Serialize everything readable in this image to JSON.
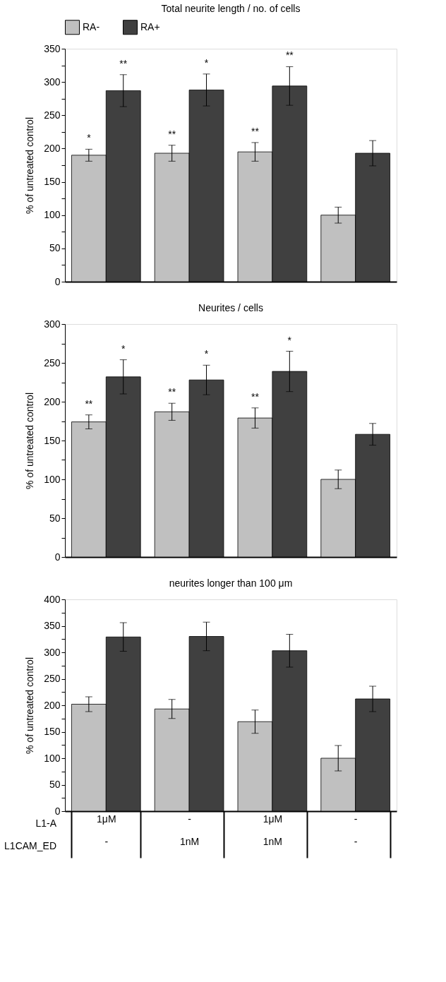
{
  "chart_data": [
    {
      "type": "bar",
      "title": "Total neurite length / no. of cells",
      "ylabel": "% of untreated control",
      "categories": [
        null,
        null,
        null,
        null
      ],
      "tick_labels": "y",
      "legend": "top",
      "ylim": [
        0,
        350
      ],
      "yticks": [
        0,
        {
          "value": 25,
          "label": null
        },
        50,
        {
          "value": 75,
          "label": null
        },
        100,
        {
          "value": 125,
          "label": null
        },
        150,
        {
          "value": 175,
          "label": null
        },
        200,
        {
          "value": 225,
          "label": null
        },
        250,
        {
          "value": 275,
          "label": null
        },
        300,
        {
          "value": 325,
          "label": null
        },
        350
      ],
      "series": [
        {
          "name": "RA-",
          "color": "#c0c0c0",
          "values": [
            190,
            193,
            195,
            100
          ],
          "errors": [
            9,
            12,
            14,
            12
          ],
          "value_labels": [
            "*",
            "**",
            "**",
            null
          ]
        },
        {
          "name": "RA+",
          "color": "#404040",
          "values": [
            287,
            288,
            294,
            193
          ],
          "errors": [
            24,
            24,
            29,
            19
          ],
          "value_labels": [
            "**",
            "*",
            "**",
            null
          ]
        }
      ]
    },
    {
      "type": "bar",
      "title": "Neurites / cells",
      "ylabel": "% of untreated control",
      "categories": [
        null,
        null,
        null,
        null
      ],
      "tick_labels": "y",
      "ylim": [
        0,
        300
      ],
      "yticks": [
        0,
        {
          "value": 25,
          "label": null
        },
        50,
        {
          "value": 75,
          "label": null
        },
        100,
        {
          "value": 125,
          "label": null
        },
        150,
        {
          "value": 175,
          "label": null
        },
        200,
        {
          "value": 225,
          "label": null
        },
        250,
        {
          "value": 275,
          "label": null
        },
        300
      ],
      "series": [
        {
          "name": "RA-",
          "color": "#c0c0c0",
          "values": [
            174,
            187,
            179,
            100
          ],
          "errors": [
            9,
            11,
            13,
            12
          ],
          "value_labels": [
            "**",
            "**",
            "**",
            null
          ]
        },
        {
          "name": "RA+",
          "color": "#404040",
          "values": [
            232,
            228,
            239,
            158
          ],
          "errors": [
            22,
            19,
            26,
            14
          ],
          "value_labels": [
            "*",
            "*",
            "*",
            null
          ]
        }
      ]
    },
    {
      "type": "bar",
      "title": "neurites longer than 100 μm",
      "ylabel": "% of untreated control",
      "categories": [
        "1μM\n-",
        "-\n1nM",
        "1μM\n1nM",
        "-\n-"
      ],
      "annotations": [
        "L1-A",
        "L1CAM_ED"
      ],
      "ylim": [
        0,
        400
      ],
      "yticks": [
        0,
        {
          "value": 25,
          "label": null
        },
        50,
        {
          "value": 75,
          "label": null
        },
        100,
        {
          "value": 125,
          "label": null
        },
        150,
        {
          "value": 175,
          "label": null
        },
        200,
        {
          "value": 225,
          "label": null
        },
        250,
        {
          "value": 275,
          "label": null
        },
        300,
        {
          "value": 325,
          "label": null
        },
        350,
        {
          "value": 375,
          "label": null
        },
        400
      ],
      "series": [
        {
          "name": "RA-",
          "color": "#c0c0c0",
          "values": [
            202,
            193,
            169,
            100
          ],
          "errors": [
            14,
            18,
            22,
            24
          ]
        },
        {
          "name": "RA+",
          "color": "#404040",
          "values": [
            329,
            330,
            303,
            212
          ],
          "errors": [
            27,
            27,
            31,
            24
          ]
        }
      ]
    }
  ]
}
